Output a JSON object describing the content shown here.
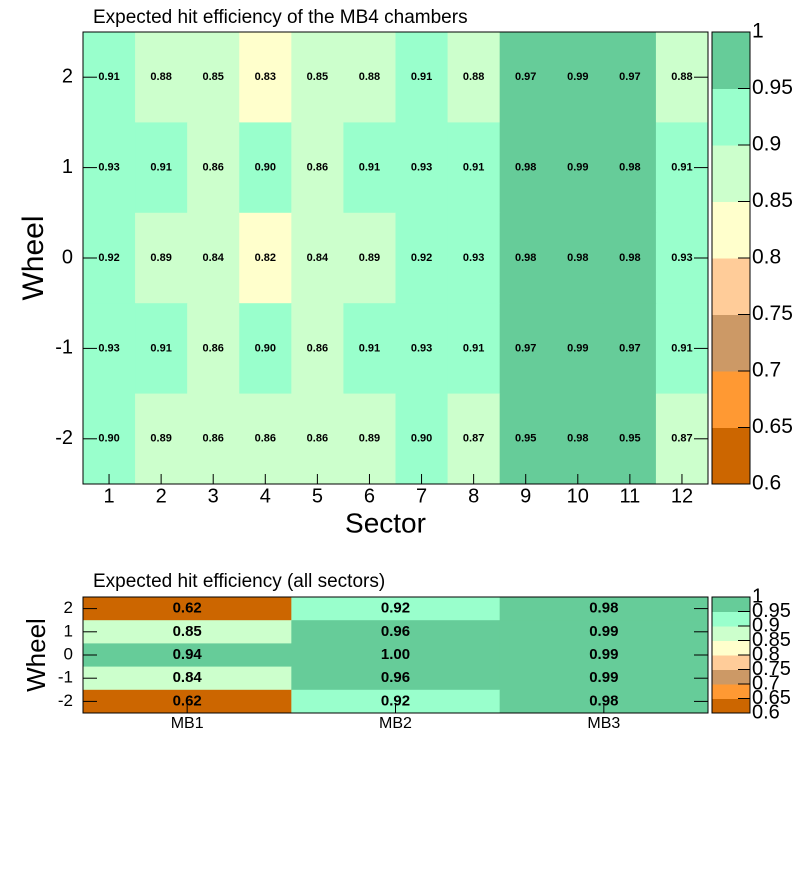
{
  "chart_data": [
    {
      "type": "heatmap",
      "title": "Expected hit efficiency of the MB4 chambers",
      "xlabel": "Sector",
      "ylabel": "Wheel",
      "x": [
        "1",
        "2",
        "3",
        "4",
        "5",
        "6",
        "7",
        "8",
        "9",
        "10",
        "11",
        "12"
      ],
      "y": [
        "2",
        "1",
        "0",
        "-1",
        "-2"
      ],
      "values": [
        [
          0.91,
          0.88,
          0.85,
          0.83,
          0.85,
          0.88,
          0.91,
          0.88,
          0.97,
          0.99,
          0.97,
          0.88
        ],
        [
          0.93,
          0.91,
          0.86,
          0.9,
          0.86,
          0.91,
          0.93,
          0.91,
          0.98,
          0.99,
          0.98,
          0.91
        ],
        [
          0.92,
          0.89,
          0.84,
          0.82,
          0.84,
          0.89,
          0.92,
          0.93,
          0.98,
          0.98,
          0.98,
          0.93
        ],
        [
          0.93,
          0.91,
          0.86,
          0.9,
          0.86,
          0.91,
          0.93,
          0.91,
          0.97,
          0.99,
          0.97,
          0.91
        ],
        [
          0.9,
          0.89,
          0.86,
          0.86,
          0.86,
          0.89,
          0.9,
          0.87,
          0.95,
          0.98,
          0.95,
          0.87
        ]
      ],
      "value_labels": [
        [
          "0.91",
          "0.88",
          "0.85",
          "0.83",
          "0.85",
          "0.88",
          "0.91",
          "0.88",
          "0.97",
          "0.99",
          "0.97",
          "0.88"
        ],
        [
          "0.93",
          "0.91",
          "0.86",
          "0.90",
          "0.86",
          "0.91",
          "0.93",
          "0.91",
          "0.98",
          "0.99",
          "0.98",
          "0.91"
        ],
        [
          "0.92",
          "0.89",
          "0.84",
          "0.82",
          "0.84",
          "0.89",
          "0.92",
          "0.93",
          "0.98",
          "0.98",
          "0.98",
          "0.93"
        ],
        [
          "0.93",
          "0.91",
          "0.86",
          "0.90",
          "0.86",
          "0.91",
          "0.93",
          "0.91",
          "0.97",
          "0.99",
          "0.97",
          "0.91"
        ],
        [
          "0.90",
          "0.89",
          "0.86",
          "0.86",
          "0.86",
          "0.89",
          "0.90",
          "0.87",
          "0.95",
          "0.98",
          "0.95",
          "0.87"
        ]
      ],
      "cell_colors": [
        [
          "#99ffcc",
          "#ccffcc",
          "#ccffcc",
          "#ffffcc",
          "#ccffcc",
          "#ccffcc",
          "#99ffcc",
          "#ccffcc",
          "#66cc99",
          "#66cc99",
          "#66cc99",
          "#ccffcc"
        ],
        [
          "#99ffcc",
          "#99ffcc",
          "#ccffcc",
          "#99ffcc",
          "#ccffcc",
          "#99ffcc",
          "#99ffcc",
          "#99ffcc",
          "#66cc99",
          "#66cc99",
          "#66cc99",
          "#99ffcc"
        ],
        [
          "#99ffcc",
          "#ccffcc",
          "#ccffcc",
          "#ffffcc",
          "#ccffcc",
          "#ccffcc",
          "#99ffcc",
          "#99ffcc",
          "#66cc99",
          "#66cc99",
          "#66cc99",
          "#99ffcc"
        ],
        [
          "#99ffcc",
          "#99ffcc",
          "#ccffcc",
          "#99ffcc",
          "#ccffcc",
          "#99ffcc",
          "#99ffcc",
          "#99ffcc",
          "#66cc99",
          "#66cc99",
          "#66cc99",
          "#99ffcc"
        ],
        [
          "#99ffcc",
          "#ccffcc",
          "#ccffcc",
          "#ccffcc",
          "#ccffcc",
          "#ccffcc",
          "#99ffcc",
          "#ccffcc",
          "#66cc99",
          "#66cc99",
          "#66cc99",
          "#ccffcc"
        ]
      ],
      "colorbar": {
        "lim": [
          0.6,
          1
        ],
        "ticks": [
          0.6,
          0.65,
          0.7,
          0.75,
          0.8,
          0.85,
          0.9,
          0.95,
          1
        ],
        "colors": [
          "#cc6600",
          "#ff9933",
          "#cc9966",
          "#ffcc99",
          "#ffffcc",
          "#ccffcc",
          "#99ffcc",
          "#66cc99"
        ]
      }
    },
    {
      "type": "heatmap",
      "title": "Expected hit efficiency (all sectors)",
      "ylabel": "Wheel",
      "x": [
        "MB1",
        "MB2",
        "MB3"
      ],
      "y": [
        "2",
        "1",
        "0",
        "-1",
        "-2"
      ],
      "values": [
        [
          0.62,
          0.92,
          0.98
        ],
        [
          0.85,
          0.96,
          0.99
        ],
        [
          0.94,
          1,
          0.99
        ],
        [
          0.84,
          0.96,
          0.99
        ],
        [
          0.62,
          0.92,
          0.98
        ]
      ],
      "value_labels": [
        [
          "0.62",
          "0.92",
          "0.98"
        ],
        [
          "0.85",
          "0.96",
          "0.99"
        ],
        [
          "0.94",
          "1.00",
          "0.99"
        ],
        [
          "0.84",
          "0.96",
          "0.99"
        ],
        [
          "0.62",
          "0.92",
          "0.98"
        ]
      ],
      "cell_colors": [
        [
          "#cc6600",
          "#99ffcc",
          "#66cc99"
        ],
        [
          "#ccffcc",
          "#66cc99",
          "#66cc99"
        ],
        [
          "#66cc99",
          "#66cc99",
          "#66cc99"
        ],
        [
          "#ccffcc",
          "#66cc99",
          "#66cc99"
        ],
        [
          "#cc6600",
          "#99ffcc",
          "#66cc99"
        ]
      ],
      "colorbar": {
        "lim": [
          0.6,
          1
        ],
        "ticks": [
          0.6,
          0.65,
          0.7,
          0.75,
          0.8,
          0.85,
          0.9,
          0.95,
          1
        ],
        "colors": [
          "#cc6600",
          "#ff9933",
          "#cc9966",
          "#ffcc99",
          "#ffffcc",
          "#ccffcc",
          "#99ffcc",
          "#66cc99"
        ]
      }
    }
  ]
}
